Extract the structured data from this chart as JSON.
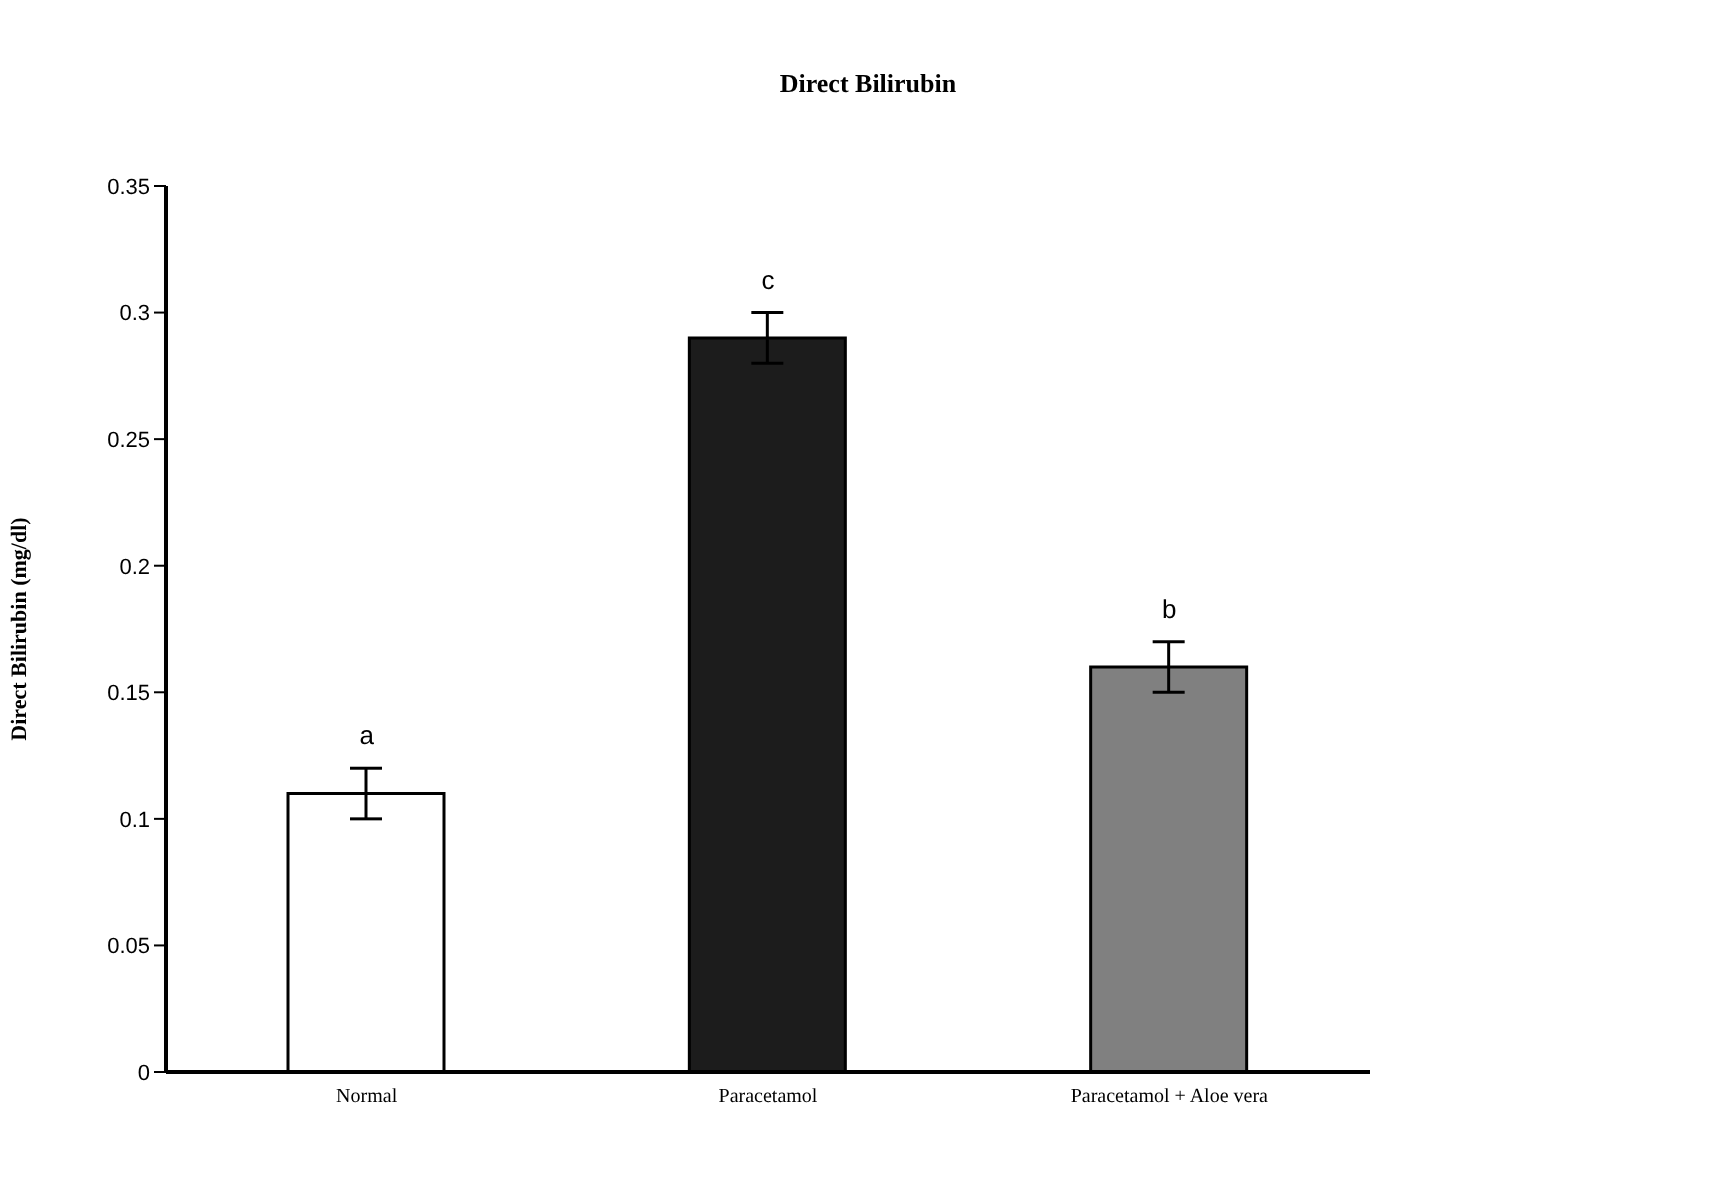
{
  "chart_data": {
    "type": "bar",
    "title": "Direct Bilirubin",
    "ylabel": "Direct Bilirubin (mg/dl)",
    "categories": [
      "Normal",
      "Paracetamol",
      "Paracetamol + Aloe vera"
    ],
    "values": [
      0.11,
      0.29,
      0.16
    ],
    "colors": [
      "#ffffff",
      "#1c1c1c",
      "#808080"
    ],
    "errors": [
      0.01,
      0.01,
      0.01
    ],
    "ylim": [
      0,
      0.35
    ],
    "yticks": [
      0,
      0.05,
      0.1,
      0.15,
      0.2,
      0.25,
      0.3,
      0.35
    ],
    "grid": false,
    "legend": false,
    "annotations": [
      {
        "text": "a",
        "x": "Normal",
        "y": 0.12
      },
      {
        "text": "c",
        "x": "Paracetamol",
        "y": 0.3
      },
      {
        "text": "b",
        "x": "Paracetamol + Aloe vera",
        "y": 0.17
      }
    ]
  }
}
